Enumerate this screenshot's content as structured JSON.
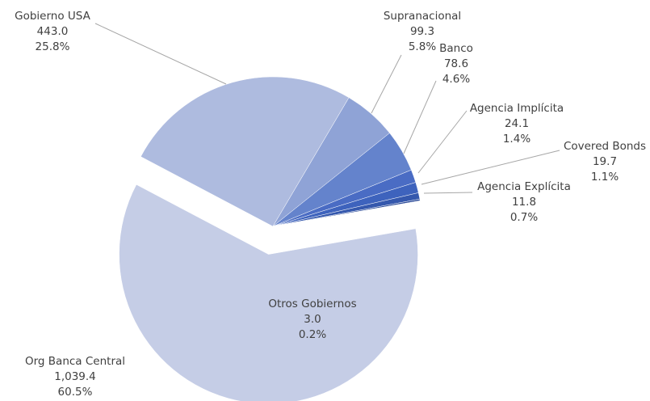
{
  "chart_data": {
    "type": "pie",
    "categories": [
      "Gobierno USA",
      "Supranacional",
      "Banco",
      "Agencia Implícita",
      "Covered Bonds",
      "Agencia Explícita",
      "Otros Gobiernos",
      "Org Banca Central"
    ],
    "values": [
      443.0,
      99.3,
      78.6,
      24.1,
      19.7,
      11.8,
      3.0,
      1039.4
    ],
    "value_labels": [
      "443.0",
      "99.3",
      "78.6",
      "24.1",
      "19.7",
      "11.8",
      "3.0",
      "1,039.4"
    ],
    "percents": [
      25.8,
      5.8,
      4.6,
      1.4,
      1.1,
      0.7,
      0.2,
      60.5
    ],
    "percent_labels": [
      "25.8%",
      "5.8%",
      "4.6%",
      "1.4%",
      "1.1%",
      "0.7%",
      "0.2%",
      "60.5%"
    ],
    "colors": [
      "#aebbdf",
      "#8fa3d6",
      "#6483cc",
      "#4a6cc4",
      "#3e63bd",
      "#3558ad",
      "#2e4d99",
      "#c5cde6"
    ]
  }
}
